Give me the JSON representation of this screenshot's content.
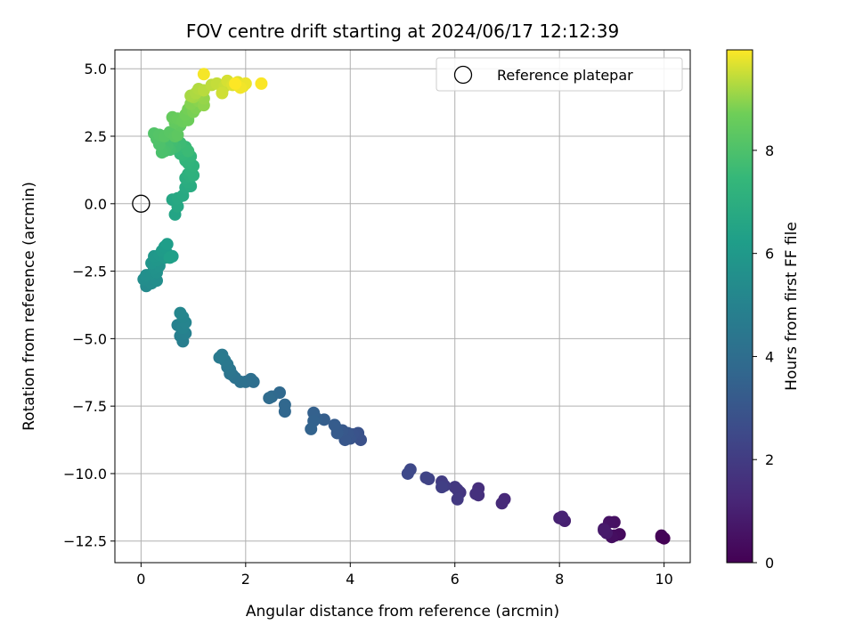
{
  "chart_data": {
    "type": "scatter",
    "title": "FOV centre drift starting at 2024/06/17 12:12:39",
    "xlabel": "Angular distance from reference (arcmin)",
    "ylabel": "Rotation from reference (arcmin)",
    "xlim": [
      -0.5,
      10.5
    ],
    "ylim": [
      -13.3,
      5.7
    ],
    "xticks": [
      0,
      2,
      4,
      6,
      8,
      10
    ],
    "xtick_labels": [
      "0",
      "2",
      "4",
      "6",
      "8",
      "10"
    ],
    "yticks": [
      5.0,
      2.5,
      0.0,
      -2.5,
      -5.0,
      -7.5,
      -10.0,
      -12.5
    ],
    "ytick_labels": [
      "5.0",
      "2.5",
      "0.0",
      "−2.5",
      "−5.0",
      "−7.5",
      "−10.0",
      "−12.5"
    ],
    "grid": true,
    "legend": {
      "position": "top-right",
      "entries": [
        {
          "label": "Reference platepar",
          "marker": "open-circle"
        }
      ]
    },
    "reference_point": {
      "x": 0,
      "y": 0
    },
    "colorbar": {
      "label": "Hours from first FF file",
      "colormap": "viridis",
      "range": [
        0,
        9.95
      ],
      "ticks": [
        0,
        2,
        4,
        6,
        8
      ],
      "tick_labels": [
        "0",
        "2",
        "4",
        "6",
        "8"
      ]
    },
    "series": [
      {
        "color_by": "hours",
        "points": [
          [
            9.95,
            -12.35,
            0.0
          ],
          [
            10.0,
            -12.4,
            0.05
          ],
          [
            9.95,
            -12.3,
            0.1
          ],
          [
            9.15,
            -12.25,
            0.3
          ],
          [
            9.05,
            -12.3,
            0.35
          ],
          [
            9.0,
            -12.35,
            0.4
          ],
          [
            9.05,
            -11.8,
            0.5
          ],
          [
            8.95,
            -11.8,
            0.55
          ],
          [
            8.85,
            -12.05,
            0.7
          ],
          [
            8.9,
            -12.2,
            0.75
          ],
          [
            8.85,
            -12.1,
            0.8
          ],
          [
            8.1,
            -11.75,
            1.0
          ],
          [
            8.0,
            -11.65,
            1.05
          ],
          [
            8.05,
            -11.6,
            1.1
          ],
          [
            6.95,
            -10.95,
            1.3
          ],
          [
            6.9,
            -11.1,
            1.35
          ],
          [
            6.45,
            -10.55,
            1.5
          ],
          [
            6.45,
            -10.8,
            1.55
          ],
          [
            6.4,
            -10.75,
            1.6
          ],
          [
            6.1,
            -10.7,
            1.75
          ],
          [
            6.05,
            -10.6,
            1.8
          ],
          [
            6.0,
            -10.5,
            1.85
          ],
          [
            6.05,
            -10.95,
            1.9
          ],
          [
            5.75,
            -10.3,
            2.0
          ],
          [
            5.8,
            -10.45,
            2.05
          ],
          [
            5.75,
            -10.5,
            2.1
          ],
          [
            5.5,
            -10.2,
            2.25
          ],
          [
            5.45,
            -10.15,
            2.3
          ],
          [
            5.15,
            -9.85,
            2.45
          ],
          [
            5.1,
            -10.0,
            2.5
          ],
          [
            4.2,
            -8.75,
            2.8
          ],
          [
            4.15,
            -8.5,
            2.85
          ],
          [
            4.05,
            -8.55,
            2.9
          ],
          [
            4.0,
            -8.7,
            2.95
          ],
          [
            3.95,
            -8.5,
            3.0
          ],
          [
            3.9,
            -8.75,
            3.05
          ],
          [
            3.85,
            -8.4,
            3.1
          ],
          [
            3.75,
            -8.35,
            3.15
          ],
          [
            3.75,
            -8.5,
            3.2
          ],
          [
            3.7,
            -8.2,
            3.25
          ],
          [
            3.5,
            -8.0,
            3.35
          ],
          [
            3.35,
            -7.95,
            3.4
          ],
          [
            3.3,
            -7.75,
            3.45
          ],
          [
            3.3,
            -8.05,
            3.5
          ],
          [
            3.25,
            -8.35,
            3.55
          ],
          [
            2.75,
            -7.7,
            3.7
          ],
          [
            2.75,
            -7.45,
            3.75
          ],
          [
            2.65,
            -7.0,
            3.8
          ],
          [
            2.5,
            -7.15,
            3.85
          ],
          [
            2.45,
            -7.2,
            3.9
          ],
          [
            2.15,
            -6.6,
            4.0
          ],
          [
            2.1,
            -6.5,
            4.05
          ],
          [
            2.0,
            -6.6,
            4.1
          ],
          [
            1.9,
            -6.6,
            4.15
          ],
          [
            1.8,
            -6.45,
            4.2
          ],
          [
            1.75,
            -6.35,
            4.25
          ],
          [
            1.7,
            -6.3,
            4.3
          ],
          [
            1.7,
            -6.15,
            4.35
          ],
          [
            1.65,
            -6.05,
            4.4
          ],
          [
            1.65,
            -5.95,
            4.45
          ],
          [
            1.6,
            -5.8,
            4.5
          ],
          [
            1.55,
            -5.6,
            4.55
          ],
          [
            1.5,
            -5.7,
            4.6
          ],
          [
            0.8,
            -5.1,
            4.8
          ],
          [
            0.75,
            -4.9,
            4.85
          ],
          [
            0.85,
            -4.8,
            4.9
          ],
          [
            0.7,
            -4.5,
            4.95
          ],
          [
            0.8,
            -4.6,
            5.0
          ],
          [
            0.85,
            -4.4,
            5.05
          ],
          [
            0.8,
            -4.2,
            5.1
          ],
          [
            0.75,
            -4.05,
            5.15
          ],
          [
            0.15,
            -2.9,
            5.3
          ],
          [
            0.1,
            -3.05,
            5.35
          ],
          [
            0.2,
            -2.95,
            5.4
          ],
          [
            0.05,
            -2.8,
            5.45
          ],
          [
            0.3,
            -2.85,
            5.5
          ],
          [
            0.1,
            -2.65,
            5.55
          ],
          [
            0.2,
            -2.6,
            5.6
          ],
          [
            0.3,
            -2.55,
            5.65
          ],
          [
            0.25,
            -2.4,
            5.7
          ],
          [
            0.35,
            -2.3,
            5.75
          ],
          [
            0.2,
            -2.2,
            5.8
          ],
          [
            0.3,
            -2.1,
            5.85
          ],
          [
            0.25,
            -1.95,
            5.9
          ],
          [
            0.35,
            -1.9,
            5.95
          ],
          [
            0.45,
            -2.0,
            6.0
          ],
          [
            0.5,
            -1.85,
            6.05
          ],
          [
            0.4,
            -1.75,
            6.1
          ],
          [
            0.45,
            -1.6,
            6.15
          ],
          [
            0.5,
            -1.5,
            6.2
          ],
          [
            0.6,
            -1.95,
            6.25
          ],
          [
            0.55,
            -2.0,
            6.3
          ],
          [
            0.65,
            -0.4,
            6.5
          ],
          [
            0.6,
            0.15,
            6.6
          ],
          [
            0.7,
            -0.1,
            6.65
          ],
          [
            0.7,
            0.2,
            6.7
          ],
          [
            0.8,
            0.3,
            6.75
          ],
          [
            0.85,
            0.6,
            6.8
          ],
          [
            0.95,
            0.65,
            6.85
          ],
          [
            0.9,
            0.8,
            6.9
          ],
          [
            0.85,
            0.95,
            6.95
          ],
          [
            0.95,
            1.0,
            7.0
          ],
          [
            0.9,
            1.1,
            7.05
          ],
          [
            1.0,
            1.05,
            7.1
          ],
          [
            0.95,
            1.2,
            7.15
          ],
          [
            1.0,
            1.4,
            7.2
          ],
          [
            0.9,
            1.5,
            7.25
          ],
          [
            0.85,
            1.6,
            7.3
          ],
          [
            0.95,
            1.75,
            7.35
          ],
          [
            0.8,
            1.8,
            7.4
          ],
          [
            0.75,
            1.85,
            7.45
          ],
          [
            0.7,
            2.0,
            7.5
          ],
          [
            0.85,
            2.1,
            7.55
          ],
          [
            0.9,
            1.95,
            7.6
          ],
          [
            0.75,
            2.25,
            7.65
          ],
          [
            0.65,
            2.1,
            7.7
          ],
          [
            0.6,
            2.3,
            7.75
          ],
          [
            0.55,
            2.0,
            7.8
          ],
          [
            0.5,
            2.15,
            7.85
          ],
          [
            0.45,
            1.95,
            7.9
          ],
          [
            0.4,
            1.9,
            7.95
          ],
          [
            0.35,
            2.2,
            8.0
          ],
          [
            0.3,
            2.4,
            8.05
          ],
          [
            0.25,
            2.6,
            8.1
          ],
          [
            0.35,
            2.55,
            8.15
          ],
          [
            0.45,
            2.5,
            8.2
          ],
          [
            0.55,
            2.65,
            8.25
          ],
          [
            0.65,
            2.5,
            8.3
          ],
          [
            0.7,
            2.55,
            8.35
          ],
          [
            0.75,
            2.9,
            8.4
          ],
          [
            0.65,
            3.0,
            8.45
          ],
          [
            0.6,
            3.2,
            8.5
          ],
          [
            0.7,
            3.15,
            8.55
          ],
          [
            0.8,
            3.05,
            8.6
          ],
          [
            0.9,
            3.1,
            8.65
          ],
          [
            0.85,
            3.3,
            8.7
          ],
          [
            0.9,
            3.5,
            8.75
          ],
          [
            1.0,
            3.4,
            8.8
          ],
          [
            1.05,
            3.55,
            8.85
          ],
          [
            0.95,
            3.7,
            8.9
          ],
          [
            1.1,
            3.8,
            8.95
          ],
          [
            1.2,
            3.65,
            9.0
          ],
          [
            1.2,
            3.9,
            9.05
          ],
          [
            1.1,
            4.05,
            9.1
          ],
          [
            1.0,
            3.95,
            9.15
          ],
          [
            0.95,
            4.0,
            9.2
          ],
          [
            1.05,
            4.1,
            9.25
          ],
          [
            1.1,
            4.25,
            9.3
          ],
          [
            1.2,
            4.2,
            9.35
          ],
          [
            1.35,
            4.4,
            9.4
          ],
          [
            1.45,
            4.45,
            9.45
          ],
          [
            1.6,
            4.35,
            9.5
          ],
          [
            1.55,
            4.1,
            9.55
          ],
          [
            1.65,
            4.55,
            9.6
          ],
          [
            1.75,
            4.4,
            9.65
          ],
          [
            1.85,
            4.5,
            9.7
          ],
          [
            1.95,
            4.35,
            9.75
          ],
          [
            2.0,
            4.45,
            9.8
          ],
          [
            1.9,
            4.3,
            9.85
          ],
          [
            1.2,
            4.8,
            9.88
          ],
          [
            2.3,
            4.45,
            9.92
          ],
          [
            1.8,
            4.45,
            9.95
          ]
        ]
      }
    ]
  }
}
